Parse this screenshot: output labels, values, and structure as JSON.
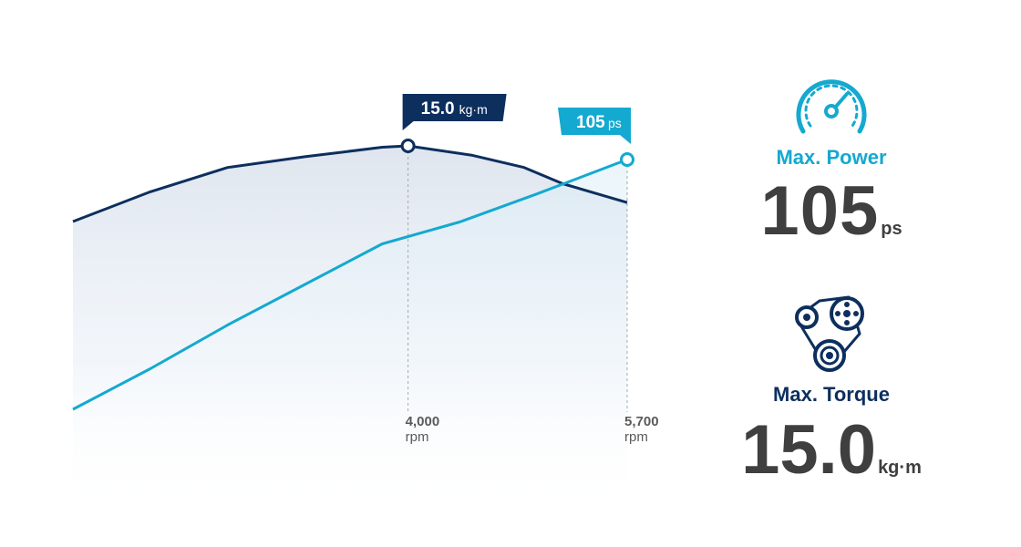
{
  "chart_data": {
    "type": "line",
    "xlabel": "",
    "ylabel": "",
    "x_unit": "rpm",
    "marked_x": [
      4000,
      5700
    ],
    "x_tick_labels": [
      "4,000",
      "5,700"
    ],
    "x_range": [
      1400,
      5700
    ],
    "series": [
      {
        "key": "torque",
        "color": "#0d2f5e",
        "points": [
          [
            1400,
            12.2
          ],
          [
            2000,
            13.3
          ],
          [
            2600,
            14.2
          ],
          [
            3200,
            14.6
          ],
          [
            3800,
            14.95
          ],
          [
            4000,
            15.0
          ],
          [
            4500,
            14.65
          ],
          [
            4900,
            14.2
          ],
          [
            5200,
            13.6
          ],
          [
            5700,
            12.9
          ]
        ]
      },
      {
        "key": "power",
        "color": "#14a9d0",
        "points": [
          [
            1400,
            25
          ],
          [
            2000,
            38
          ],
          [
            2600,
            52
          ],
          [
            3200,
            65
          ],
          [
            3800,
            78
          ],
          [
            4400,
            85
          ],
          [
            5000,
            94
          ],
          [
            5700,
            105
          ]
        ]
      }
    ],
    "callouts": [
      {
        "series": "torque",
        "x": 4000,
        "value": "15.0",
        "unit": "kg·m"
      },
      {
        "series": "power",
        "x": 5700,
        "value": "105",
        "unit": "ps"
      }
    ]
  },
  "specs": {
    "power": {
      "icon": "speedometer-icon",
      "label": "Max. Power",
      "value": "105",
      "unit": "ps"
    },
    "torque": {
      "icon": "belt-pulley-icon",
      "label": "Max. Torque",
      "value": "15.0",
      "unit": "kg·m"
    }
  },
  "colors": {
    "navy": "#0d2f5e",
    "cyan": "#14a9d0",
    "value_gray": "#3f3f3f"
  }
}
